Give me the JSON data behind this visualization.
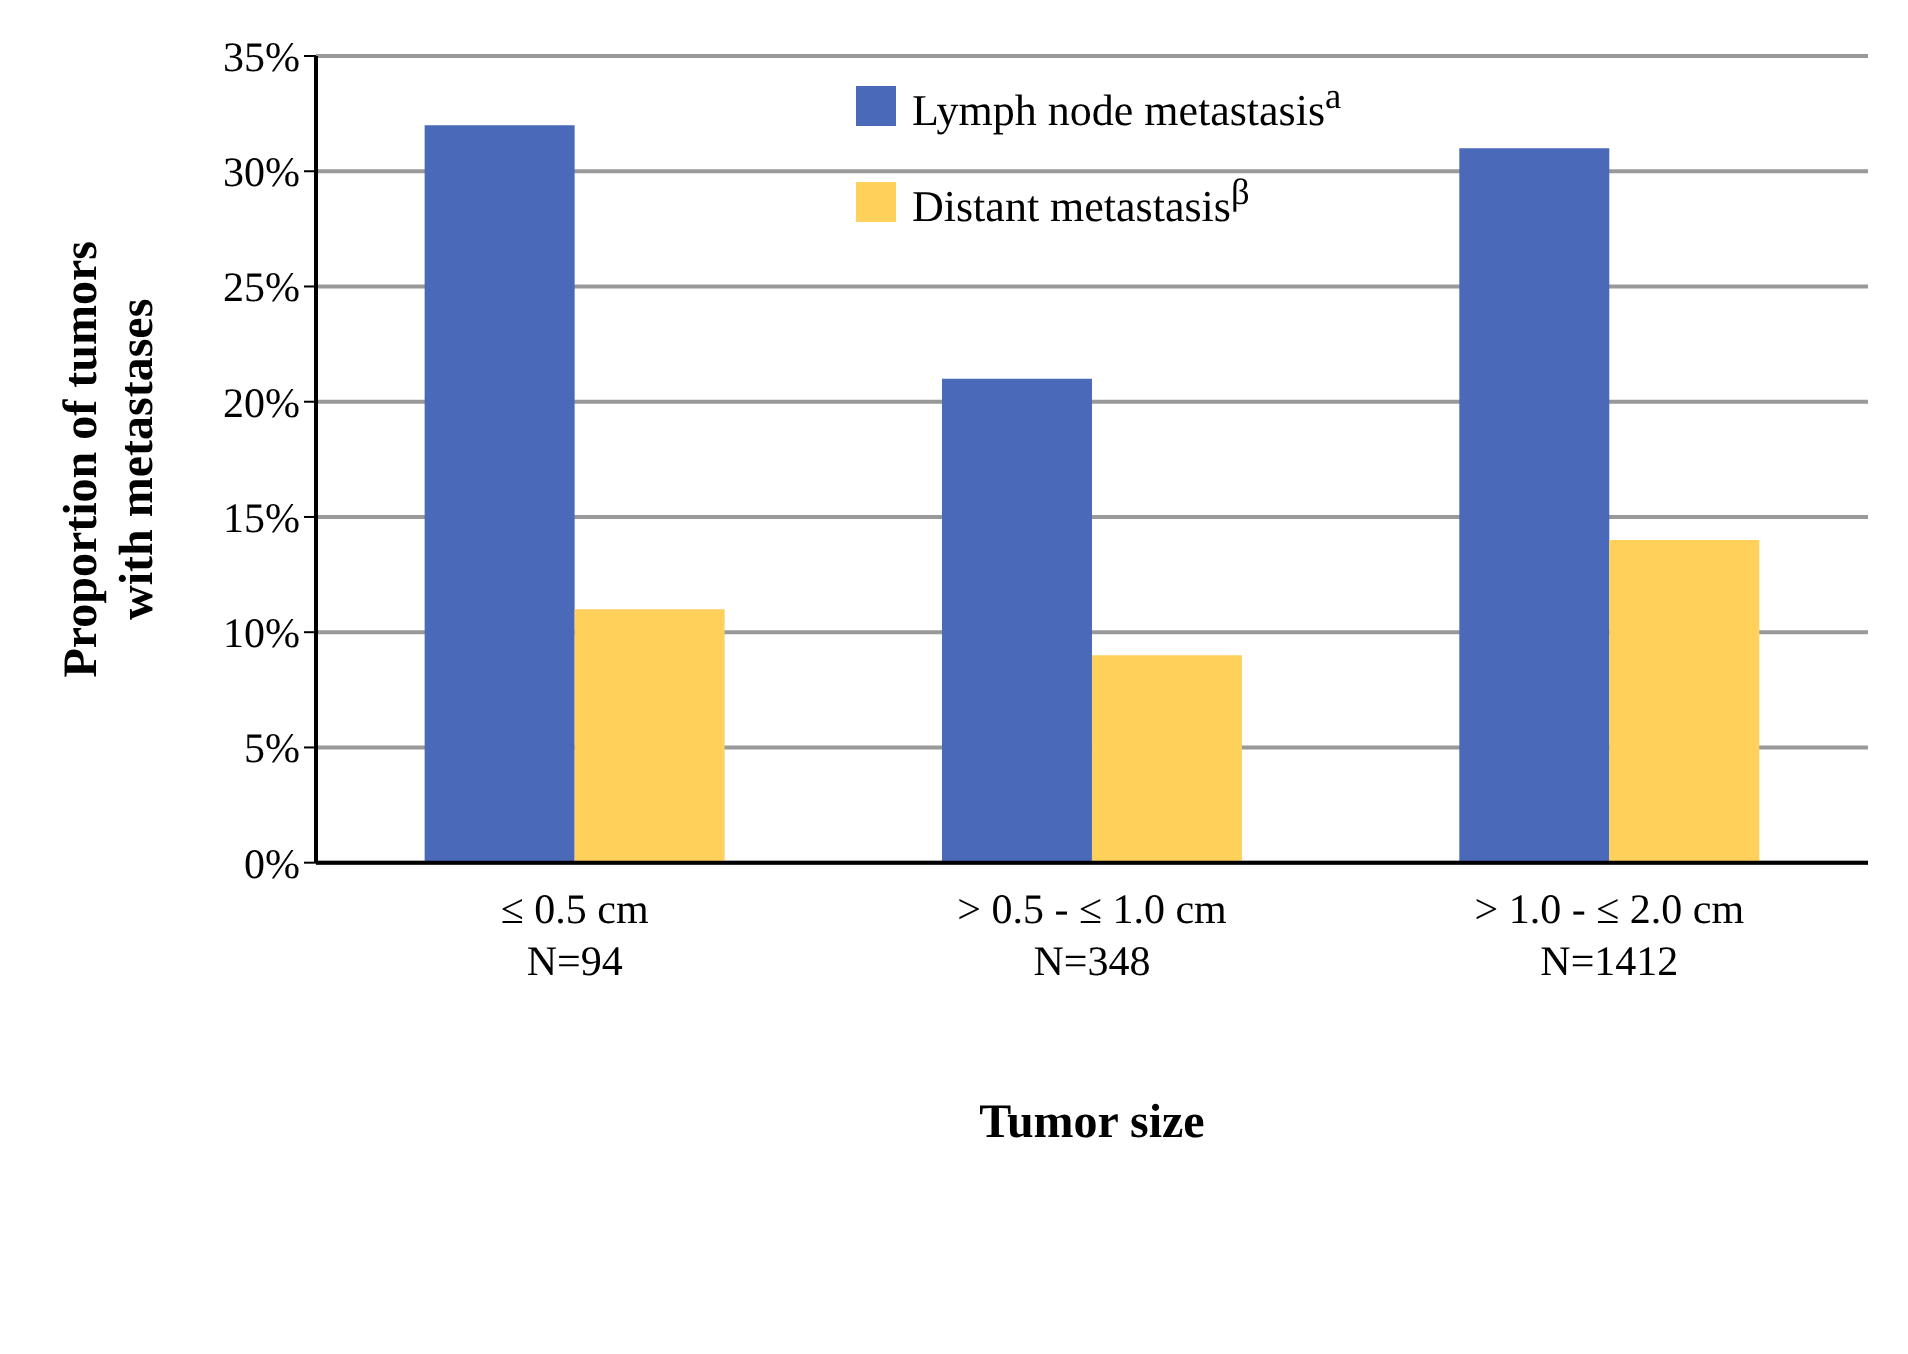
{
  "chart_data": {
    "type": "bar",
    "xlabel": "Tumor size",
    "ylabel": "Proportion of tumors with metastases",
    "categories": [
      "≤ 0.5 cm\nN=94",
      "> 0.5 - ≤ 1.0 cm\nN=348",
      "> 1.0 - ≤ 2.0 cm\nN=1412"
    ],
    "series": [
      {
        "name": "Lymph node metastasis$^{a}$",
        "color": "#4a69b8",
        "values": [
          32,
          21,
          31
        ]
      },
      {
        "name": "Distant metastasis$^{β}$",
        "color": "#ffd05a",
        "values": [
          11,
          9,
          14
        ]
      }
    ],
    "ylim": [
      0,
      35
    ],
    "yticks": [
      {
        "value": 0,
        "label": "0%"
      },
      {
        "value": 5,
        "label": "5%"
      },
      {
        "value": 10,
        "label": "10%"
      },
      {
        "value": 15,
        "label": "15%"
      },
      {
        "value": 20,
        "label": "20%"
      },
      {
        "value": 25,
        "label": "25%"
      },
      {
        "value": 30,
        "label": "30%"
      },
      {
        "value": 35,
        "label": "35%"
      }
    ],
    "grid": "y",
    "legend": "top"
  }
}
